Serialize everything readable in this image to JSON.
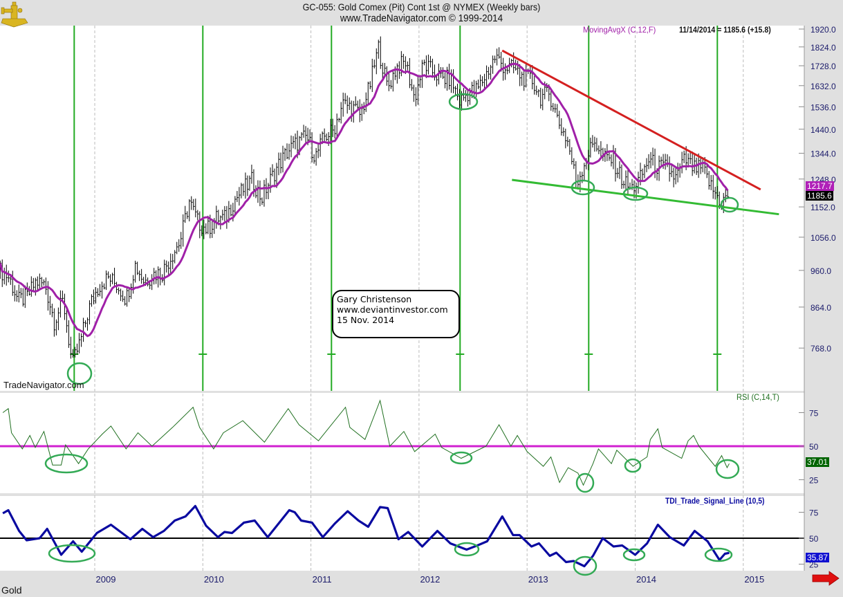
{
  "header": {
    "title": "GC-055:  Gold Comex (Pit) Cont 1st @ NYMEX  (Weekly bars)",
    "subtitle": "www.TradeNavigator.com © 1999-2014",
    "logo_icon": "sextant-icon"
  },
  "legend": {
    "ma_label": "MovingAvgX (C,12,F)",
    "last_quote": "11/14/2014 = 1185.6 (+15.8)"
  },
  "watermark": "TradeNavigator.com",
  "annotation": {
    "line1": "Gary Christenson",
    "line2": "www.deviantinvestor.com",
    "line3": "15 Nov. 2014"
  },
  "value_boxes": {
    "ma": "1217.7",
    "close": "1185.6",
    "rsi": "37.01",
    "tdi": "35.87"
  },
  "footer": {
    "symbol": "Gold"
  },
  "colors": {
    "ma": "#a020a8",
    "rsi": "#1f6f1f",
    "rsi_mid": "#d020d0",
    "tdi": "#0a0aa0",
    "cycle": "#22aa22",
    "resistance": "#d42020",
    "support": "#33bb33",
    "circle": "#33aa55"
  },
  "chart_data": [
    {
      "type": "line",
      "title": "GC-055: Gold Comex (Pit) Cont 1st @ NYMEX (Weekly bars)",
      "subtype": "ohlc-weekly-with-moving-average",
      "y_scale": "log",
      "ylim": [
        700,
        1950
      ],
      "y_ticks": [
        "1920.0",
        "1824.0",
        "1728.0",
        "1632.0",
        "1536.0",
        "1440.0",
        "1344.0",
        "1248.0",
        "1152.0",
        "1056.0",
        "960.0",
        "864.0",
        "768.0"
      ],
      "x_ticks": [
        "2009",
        "2010",
        "2011",
        "2012",
        "2013",
        "2014",
        "2015"
      ],
      "xlim": [
        2008.12,
        2015.45
      ],
      "monthly_close": {
        "start_year": 2008,
        "start_month": 2,
        "last_date": 2014.87,
        "values": [
          960,
          940,
          880,
          890,
          930,
          920,
          830,
          880,
          730,
          790,
          870,
          920,
          940,
          920,
          885,
          975,
          930,
          950,
          955,
          1000,
          1045,
          1170,
          1100,
          1080,
          1115,
          1115,
          1175,
          1210,
          1245,
          1180,
          1245,
          1305,
          1355,
          1385,
          1410,
          1330,
          1410,
          1435,
          1550,
          1535,
          1500,
          1625,
          1820,
          1620,
          1720,
          1745,
          1570,
          1735,
          1700,
          1665,
          1665,
          1560,
          1600,
          1615,
          1690,
          1775,
          1720,
          1715,
          1670,
          1660,
          1580,
          1595,
          1470,
          1390,
          1230,
          1320,
          1395,
          1325,
          1320,
          1250,
          1210,
          1245,
          1320,
          1290,
          1290,
          1250,
          1320,
          1285,
          1285,
          1215,
          1170,
          1185.6
        ]
      },
      "moving_average": {
        "name": "MovingAvgX (C,12,F)",
        "period": 12,
        "last": 1217.7
      },
      "last_close": 1185.6,
      "change": 15.8,
      "cycle_lines": [
        2008.81,
        2010.0,
        2011.19,
        2012.38,
        2013.57,
        2014.76
      ],
      "resistance_line": [
        [
          2012.77,
          1805
        ],
        [
          2015.16,
          1211
        ]
      ],
      "support_line": [
        [
          2012.86,
          1245
        ],
        [
          2015.33,
          1128
        ]
      ]
    },
    {
      "type": "line",
      "title": "RSI (C,14,T)",
      "ylim": [
        15,
        90
      ],
      "y_ticks": [
        "75",
        "50",
        "25"
      ],
      "reference_line": 50,
      "last": 37.01,
      "points": [
        [
          2008.15,
          75
        ],
        [
          2008.2,
          78
        ],
        [
          2008.23,
          60
        ],
        [
          2008.33,
          48
        ],
        [
          2008.4,
          58
        ],
        [
          2008.45,
          49
        ],
        [
          2008.53,
          61
        ],
        [
          2008.61,
          36
        ],
        [
          2008.69,
          36
        ],
        [
          2008.73,
          51
        ],
        [
          2008.85,
          37
        ],
        [
          2008.94,
          48
        ],
        [
          2009.07,
          59
        ],
        [
          2009.15,
          65
        ],
        [
          2009.29,
          48
        ],
        [
          2009.4,
          60
        ],
        [
          2009.53,
          50
        ],
        [
          2009.72,
          64
        ],
        [
          2009.91,
          79
        ],
        [
          2009.97,
          64
        ],
        [
          2010.1,
          48
        ],
        [
          2010.19,
          60
        ],
        [
          2010.37,
          69
        ],
        [
          2010.57,
          53
        ],
        [
          2010.79,
          78
        ],
        [
          2010.89,
          66
        ],
        [
          2011.07,
          54
        ],
        [
          2011.32,
          79
        ],
        [
          2011.36,
          64
        ],
        [
          2011.5,
          55
        ],
        [
          2011.64,
          84
        ],
        [
          2011.73,
          50
        ],
        [
          2011.86,
          61
        ],
        [
          2011.96,
          46
        ],
        [
          2012.15,
          59
        ],
        [
          2012.21,
          49
        ],
        [
          2012.39,
          41
        ],
        [
          2012.62,
          50
        ],
        [
          2012.74,
          66
        ],
        [
          2012.85,
          50
        ],
        [
          2012.91,
          58
        ],
        [
          2013.0,
          46
        ],
        [
          2013.15,
          35
        ],
        [
          2013.22,
          42
        ],
        [
          2013.3,
          23
        ],
        [
          2013.38,
          34
        ],
        [
          2013.47,
          30
        ],
        [
          2013.52,
          21
        ],
        [
          2013.61,
          37
        ],
        [
          2013.66,
          48
        ],
        [
          2013.78,
          37
        ],
        [
          2013.83,
          47
        ],
        [
          2013.98,
          35
        ],
        [
          2014.11,
          42
        ],
        [
          2014.14,
          55
        ],
        [
          2014.21,
          63
        ],
        [
          2014.25,
          49
        ],
        [
          2014.43,
          41
        ],
        [
          2014.49,
          54
        ],
        [
          2014.54,
          58
        ],
        [
          2014.59,
          50
        ],
        [
          2014.74,
          35
        ],
        [
          2014.8,
          43
        ],
        [
          2014.85,
          34
        ],
        [
          2014.87,
          37.01
        ]
      ]
    },
    {
      "type": "line",
      "title": "TDI_Trade_Signal_Line (10,5)",
      "ylim": [
        19,
        91
      ],
      "y_ticks": [
        "75",
        "50",
        "25"
      ],
      "reference_line": 50,
      "last": 35.87,
      "points": [
        [
          2008.15,
          74
        ],
        [
          2008.2,
          77
        ],
        [
          2008.3,
          57
        ],
        [
          2008.37,
          48
        ],
        [
          2008.49,
          50
        ],
        [
          2008.56,
          59
        ],
        [
          2008.69,
          34
        ],
        [
          2008.8,
          47
        ],
        [
          2008.88,
          37
        ],
        [
          2009.02,
          55
        ],
        [
          2009.15,
          63
        ],
        [
          2009.33,
          49
        ],
        [
          2009.44,
          59
        ],
        [
          2009.54,
          51
        ],
        [
          2009.64,
          57
        ],
        [
          2009.74,
          67
        ],
        [
          2009.84,
          71
        ],
        [
          2009.93,
          81
        ],
        [
          2010.03,
          62
        ],
        [
          2010.14,
          51
        ],
        [
          2010.2,
          56
        ],
        [
          2010.27,
          55
        ],
        [
          2010.38,
          65
        ],
        [
          2010.48,
          67
        ],
        [
          2010.6,
          51
        ],
        [
          2010.8,
          77
        ],
        [
          2010.85,
          75
        ],
        [
          2010.91,
          67
        ],
        [
          2011.01,
          65
        ],
        [
          2011.11,
          51
        ],
        [
          2011.22,
          64
        ],
        [
          2011.34,
          76
        ],
        [
          2011.44,
          67
        ],
        [
          2011.53,
          61
        ],
        [
          2011.64,
          80
        ],
        [
          2011.71,
          79
        ],
        [
          2011.81,
          49
        ],
        [
          2011.9,
          56
        ],
        [
          2012.03,
          42
        ],
        [
          2012.17,
          57
        ],
        [
          2012.29,
          45
        ],
        [
          2012.44,
          39
        ],
        [
          2012.54,
          43
        ],
        [
          2012.63,
          47
        ],
        [
          2012.77,
          71
        ],
        [
          2012.87,
          53
        ],
        [
          2012.93,
          53
        ],
        [
          2013.04,
          42
        ],
        [
          2013.11,
          45
        ],
        [
          2013.21,
          33
        ],
        [
          2013.27,
          36
        ],
        [
          2013.36,
          27
        ],
        [
          2013.43,
          28
        ],
        [
          2013.53,
          23
        ],
        [
          2013.61,
          33
        ],
        [
          2013.7,
          50
        ],
        [
          2013.8,
          42
        ],
        [
          2013.88,
          43
        ],
        [
          2014.0,
          34
        ],
        [
          2014.11,
          45
        ],
        [
          2014.21,
          63
        ],
        [
          2014.32,
          51
        ],
        [
          2014.45,
          43
        ],
        [
          2014.55,
          57
        ],
        [
          2014.67,
          47
        ],
        [
          2014.78,
          29
        ],
        [
          2014.83,
          35
        ],
        [
          2014.87,
          35.87
        ]
      ]
    }
  ]
}
